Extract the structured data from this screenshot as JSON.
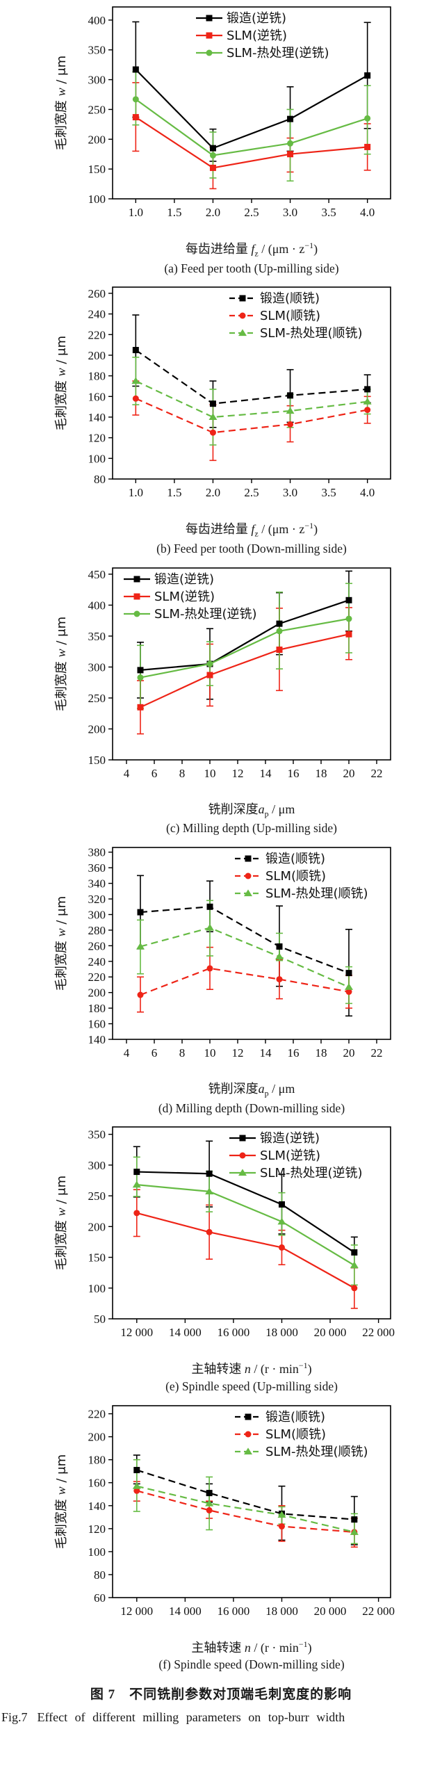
{
  "figure": {
    "caption_cn": "图 7　不同铣削参数对顶端毛刺宽度的影响",
    "caption_en_label": "Fig.7",
    "caption_en_text": "Effect of different milling parameters on top-burr width"
  },
  "palette": {
    "forged": "#000000",
    "slm": "#ee2417",
    "slm_heat_treated": "#66bb44"
  },
  "ylabel_tokens": [
    {
      "t": "毛刺宽度 "
    },
    {
      "t": "w",
      "s": "i"
    },
    {
      "t": " / μm"
    }
  ],
  "chart_data": [
    {
      "id": "a",
      "type": "line",
      "linestyle": "solid",
      "caption": "(a) Feed per tooth (Up-milling side)",
      "xlabel_tokens": [
        {
          "t": "每齿进给量 "
        },
        {
          "t": "f",
          "s": "i"
        },
        {
          "t": "z",
          "s": "sub"
        },
        {
          "t": " / (μm · z"
        },
        {
          "t": "−1",
          "s": "sup"
        },
        {
          "t": ")"
        }
      ],
      "x": [
        1.0,
        2.0,
        3.0,
        4.0
      ],
      "xlim": [
        0.7,
        4.3
      ],
      "xticks": [
        1.0,
        1.5,
        2.0,
        2.5,
        3.0,
        3.5,
        4.0
      ],
      "xtick_labels": [
        "1.0",
        "1.5",
        "2.0",
        "2.5",
        "3.0",
        "3.5",
        "4.0"
      ],
      "ylim": [
        100,
        422
      ],
      "yticks": [
        100,
        150,
        200,
        250,
        300,
        350,
        400
      ],
      "legend": {
        "pos": "top-right",
        "x_frac": 0.3
      },
      "series": [
        {
          "name": "锻造(逆铣)",
          "color": "#000000",
          "marker": "square",
          "values": [
            317,
            185,
            234,
            307
          ],
          "err_lo": [
            237,
            163,
            180,
            218
          ],
          "err_hi": [
            397,
            217,
            288,
            396
          ]
        },
        {
          "name": "SLM(逆铣)",
          "color": "#ee2417",
          "marker": "square",
          "values": [
            237,
            152,
            175,
            187
          ],
          "err_lo": [
            180,
            117,
            145,
            148
          ],
          "err_hi": [
            295,
            187,
            202,
            226
          ]
        },
        {
          "name": "SLM-热处理(逆铣)",
          "color": "#66bb44",
          "marker": "circle",
          "values": [
            267,
            173,
            193,
            235
          ],
          "err_lo": [
            224,
            135,
            130,
            175
          ],
          "err_hi": [
            313,
            212,
            250,
            290
          ]
        }
      ]
    },
    {
      "id": "b",
      "type": "line",
      "linestyle": "dashed",
      "caption": "(b) Feed per tooth (Down-milling side)",
      "xlabel_tokens": [
        {
          "t": "每齿进给量 "
        },
        {
          "t": "f",
          "s": "i"
        },
        {
          "t": "z",
          "s": "sub"
        },
        {
          "t": " / (μm · z"
        },
        {
          "t": "−1",
          "s": "sup"
        },
        {
          "t": ")"
        }
      ],
      "x": [
        1.0,
        2.0,
        3.0,
        4.0
      ],
      "xlim": [
        0.7,
        4.3
      ],
      "xticks": [
        1.0,
        1.5,
        2.0,
        2.5,
        3.0,
        3.5,
        4.0
      ],
      "xtick_labels": [
        "1.0",
        "1.5",
        "2.0",
        "2.5",
        "3.0",
        "3.5",
        "4.0"
      ],
      "ylim": [
        80,
        266
      ],
      "yticks": [
        80,
        100,
        120,
        140,
        160,
        180,
        200,
        220,
        240,
        260
      ],
      "legend": {
        "pos": "top-right",
        "x_frac": 0.42
      },
      "series": [
        {
          "name": "锻造(顺铣)",
          "color": "#000000",
          "marker": "square",
          "values": [
            205,
            153,
            161,
            167
          ],
          "err_lo": [
            170,
            130,
            135,
            154
          ],
          "err_hi": [
            239,
            175,
            186,
            181
          ]
        },
        {
          "name": "SLM(顺铣)",
          "color": "#ee2417",
          "marker": "circle",
          "values": [
            158,
            125,
            133,
            147
          ],
          "err_lo": [
            142,
            98,
            116,
            134
          ],
          "err_hi": [
            175,
            152,
            151,
            160
          ]
        },
        {
          "name": "SLM-热处理(顺铣)",
          "color": "#66bb44",
          "marker": "triangle",
          "values": [
            175,
            140,
            146,
            155
          ],
          "err_lo": [
            152,
            113,
            130,
            143
          ],
          "err_hi": [
            198,
            167,
            162,
            167
          ]
        }
      ]
    },
    {
      "id": "c",
      "type": "line",
      "linestyle": "solid",
      "caption": "(c) Milling depth (Up-milling side)",
      "xlabel_tokens": [
        {
          "t": "铣削深度"
        },
        {
          "t": "a",
          "s": "i"
        },
        {
          "t": "p",
          "s": "sub"
        },
        {
          "t": " / μm"
        }
      ],
      "x": [
        5,
        10,
        15,
        20
      ],
      "xlim": [
        3,
        23
      ],
      "xticks": [
        4,
        6,
        8,
        10,
        12,
        14,
        16,
        18,
        20,
        22
      ],
      "xtick_labels": [
        "4",
        "6",
        "8",
        "10",
        "12",
        "14",
        "16",
        "18",
        "20",
        "22"
      ],
      "ylim": [
        150,
        460
      ],
      "yticks": [
        150,
        200,
        250,
        300,
        350,
        400,
        450
      ],
      "legend": {
        "pos": "top-left",
        "x_frac": 0.04
      },
      "series": [
        {
          "name": "锻造(逆铣)",
          "color": "#000000",
          "marker": "square",
          "values": [
            295,
            305,
            370,
            408
          ],
          "err_lo": [
            250,
            248,
            320,
            358
          ],
          "err_hi": [
            340,
            362,
            420,
            455
          ]
        },
        {
          "name": "SLM(逆铣)",
          "color": "#ee2417",
          "marker": "square",
          "values": [
            235,
            287,
            328,
            353
          ],
          "err_lo": [
            192,
            237,
            262,
            312
          ],
          "err_hi": [
            278,
            337,
            395,
            396
          ]
        },
        {
          "name": "SLM-热处理(逆铣)",
          "color": "#66bb44",
          "marker": "circle",
          "values": [
            283,
            305,
            358,
            378
          ],
          "err_lo": [
            233,
            270,
            297,
            323
          ],
          "err_hi": [
            335,
            341,
            421,
            435
          ]
        }
      ]
    },
    {
      "id": "d",
      "type": "line",
      "linestyle": "dashed",
      "caption": "(d) Milling depth (Down-milling side)",
      "xlabel_tokens": [
        {
          "t": "铣削深度"
        },
        {
          "t": "a",
          "s": "i"
        },
        {
          "t": "p",
          "s": "sub"
        },
        {
          "t": " / μm"
        }
      ],
      "x": [
        5,
        10,
        15,
        20
      ],
      "xlim": [
        3,
        23
      ],
      "xticks": [
        4,
        6,
        8,
        10,
        12,
        14,
        16,
        18,
        20,
        22
      ],
      "xtick_labels": [
        "4",
        "6",
        "8",
        "10",
        "12",
        "14",
        "16",
        "18",
        "20",
        "22"
      ],
      "ylim": [
        140,
        386
      ],
      "yticks": [
        140,
        160,
        180,
        200,
        220,
        240,
        260,
        280,
        300,
        320,
        340,
        360,
        380
      ],
      "legend": {
        "pos": "top-right",
        "x_frac": 0.44
      },
      "series": [
        {
          "name": "锻造(顺铣)",
          "color": "#000000",
          "marker": "square",
          "values": [
            303,
            310,
            259,
            225
          ],
          "err_lo": [
            256,
            278,
            208,
            170
          ],
          "err_hi": [
            350,
            343,
            311,
            281
          ]
        },
        {
          "name": "SLM(顺铣)",
          "color": "#ee2417",
          "marker": "circle",
          "values": [
            197,
            231,
            217,
            201
          ],
          "err_lo": [
            175,
            204,
            192,
            180
          ],
          "err_hi": [
            220,
            258,
            242,
            222
          ]
        },
        {
          "name": "SLM-热处理(顺铣)",
          "color": "#66bb44",
          "marker": "triangle",
          "values": [
            259,
            283,
            246,
            207
          ],
          "err_lo": [
            224,
            247,
            241,
            186
          ],
          "err_hi": [
            293,
            318,
            276,
            233
          ]
        }
      ]
    },
    {
      "id": "e",
      "type": "line",
      "linestyle": "solid",
      "caption": "(e) Spindle speed (Up-milling side)",
      "xlabel_tokens": [
        {
          "t": "主轴转速 "
        },
        {
          "t": "n",
          "s": "i"
        },
        {
          "t": " / (r · min"
        },
        {
          "t": "−1",
          "s": "sup"
        },
        {
          "t": ")"
        }
      ],
      "x": [
        12000,
        15000,
        18000,
        21000
      ],
      "xlim": [
        11000,
        22500
      ],
      "xticks": [
        12000,
        14000,
        16000,
        18000,
        20000,
        22000
      ],
      "xtick_labels": [
        "12 000",
        "14 000",
        "16 000",
        "18 000",
        "20 000",
        "22 000"
      ],
      "ylim": [
        50,
        362
      ],
      "yticks": [
        50,
        100,
        150,
        200,
        250,
        300,
        350
      ],
      "legend": {
        "pos": "top-right",
        "x_frac": 0.42
      },
      "series": [
        {
          "name": "锻造(逆铣)",
          "color": "#000000",
          "marker": "square",
          "values": [
            289,
            286,
            236,
            158
          ],
          "err_lo": [
            248,
            232,
            188,
            133
          ],
          "err_hi": [
            330,
            339,
            285,
            183
          ]
        },
        {
          "name": "SLM(逆铣)",
          "color": "#ee2417",
          "marker": "circle",
          "values": [
            222,
            191,
            166,
            100
          ],
          "err_lo": [
            184,
            147,
            138,
            67
          ],
          "err_hi": [
            260,
            235,
            194,
            133
          ]
        },
        {
          "name": "SLM-热处理(逆铣)",
          "color": "#66bb44",
          "marker": "triangle",
          "values": [
            268,
            257,
            208,
            137
          ],
          "err_lo": [
            249,
            224,
            186,
            105
          ],
          "err_hi": [
            313,
            290,
            255,
            170
          ]
        }
      ]
    },
    {
      "id": "f",
      "type": "line",
      "linestyle": "dashed",
      "caption": "(f) Spindle speed (Down-milling side)",
      "xlabel_tokens": [
        {
          "t": "主轴转速 "
        },
        {
          "t": "n",
          "s": "i"
        },
        {
          "t": " / (r · min"
        },
        {
          "t": "−1",
          "s": "sup"
        },
        {
          "t": ")"
        }
      ],
      "x": [
        12000,
        15000,
        18000,
        21000
      ],
      "xlim": [
        11000,
        22500
      ],
      "xticks": [
        12000,
        14000,
        16000,
        18000,
        20000,
        22000
      ],
      "xtick_labels": [
        "12 000",
        "14 000",
        "16 000",
        "18 000",
        "20 000",
        "22 000"
      ],
      "ylim": [
        60,
        227
      ],
      "yticks": [
        60,
        80,
        100,
        120,
        140,
        160,
        180,
        200,
        220
      ],
      "legend": {
        "pos": "top-right",
        "x_frac": 0.44
      },
      "series": [
        {
          "name": "锻造(顺铣)",
          "color": "#000000",
          "marker": "square",
          "values": [
            171,
            151,
            133,
            128
          ],
          "err_lo": [
            159,
            143,
            110,
            106
          ],
          "err_hi": [
            184,
            159,
            157,
            148
          ]
        },
        {
          "name": "SLM(顺铣)",
          "color": "#ee2417",
          "marker": "circle",
          "values": [
            153,
            136,
            122,
            117
          ],
          "err_lo": [
            144,
            129,
            109,
            104
          ],
          "err_hi": [
            161,
            144,
            140,
            129
          ]
        },
        {
          "name": "SLM-热处理(顺铣)",
          "color": "#66bb44",
          "marker": "triangle",
          "values": [
            157,
            142,
            132,
            117
          ],
          "err_lo": [
            135,
            119,
            124,
            107
          ],
          "err_hi": [
            180,
            165,
            139,
            133
          ]
        }
      ]
    }
  ]
}
